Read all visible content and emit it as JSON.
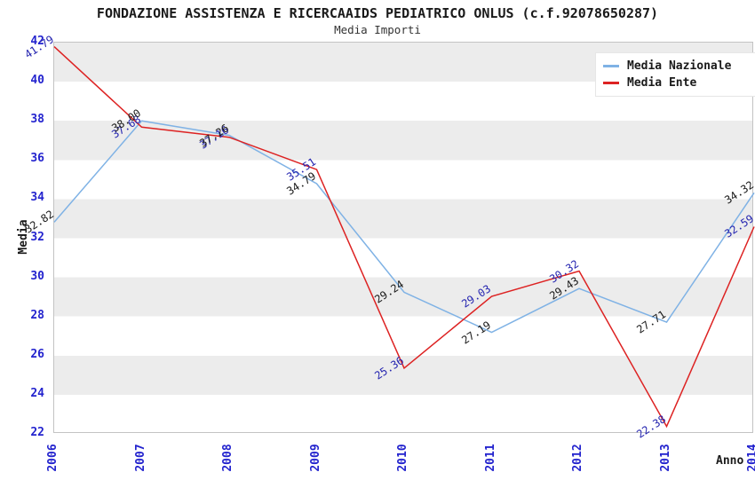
{
  "header": {
    "title": "FONDAZIONE ASSISTENZA E RICERCAAIDS PEDIATRICO ONLUS (c.f.92078650287)",
    "subtitle": "Media Importi"
  },
  "chart_data": {
    "type": "line",
    "x": [
      2006,
      2007,
      2008,
      2009,
      2010,
      2011,
      2012,
      2013,
      2014
    ],
    "xlabel": "Anno",
    "ylabel": "Media",
    "ylim": [
      22,
      42
    ],
    "ytick_step": 2,
    "grid": "alternating-horizontal-bands",
    "band_color": "#ececec",
    "axis_tick_color": "#2323ce",
    "legend_position": "top-right",
    "series": [
      {
        "name": "Media Nazionale",
        "color": "#7fb2e5",
        "label_color": "#1a1a1a",
        "values": [
          32.82,
          38.0,
          37.26,
          34.79,
          29.24,
          27.19,
          29.43,
          27.71,
          34.32
        ]
      },
      {
        "name": "Media Ente",
        "color": "#dd2222",
        "label_color": "#2525b0",
        "values": [
          41.79,
          37.68,
          37.16,
          35.51,
          25.36,
          29.03,
          30.32,
          22.38,
          32.59
        ]
      }
    ]
  }
}
